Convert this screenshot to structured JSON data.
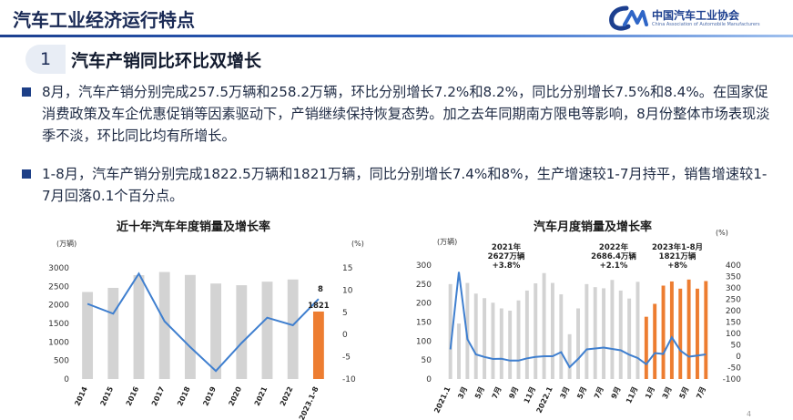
{
  "header": {
    "title": "汽车工业经济运行特点"
  },
  "logo": {
    "name": "中国汽车工业协会",
    "name_en": "China Association of Automobile Manufacturers"
  },
  "section": {
    "number": "1",
    "title": "汽车产销同比环比双增长"
  },
  "paragraphs": [
    "8月，汽车产销分别完成257.5万辆和258.2万辆，环比分别增长7.2%和8.2%，同比分别增长7.5%和8.4%。在国家促消费政策及车企优惠促销等因素驱动下，产销继续保持恢复态势。加之去年同期南方限电等影响，8月份整体市场表现淡季不淡，环比同比均有所增长。",
    "1-8月，汽车产销分别完成1822.5万辆和1821万辆，同比分别增长7.4%和8%，生产增速较1-7月持平，销售增速较1-7月回落0.1个百分点。"
  ],
  "colors": {
    "accent": "#1c3f8f",
    "bar_gray": "#d3d3d3",
    "bar_orange": "#ed7d31",
    "line_blue": "#3f7fcf"
  },
  "chart_data": [
    {
      "type": "bar",
      "title": "近十年汽车年度销量及增长率",
      "ylabel": "(万辆)",
      "y2label": "(%)",
      "categories": [
        "2014",
        "2015",
        "2016",
        "2017",
        "2018",
        "2019",
        "2020",
        "2021",
        "2022",
        "2023.1-8"
      ],
      "ylim": [
        0,
        3000
      ],
      "y2lim": [
        -10,
        15
      ],
      "yticks": [
        "0",
        "500",
        "1000",
        "1500",
        "2000",
        "2500",
        "3000"
      ],
      "y2ticks": [
        "-10",
        "-5",
        "0",
        "5",
        "10",
        "15"
      ],
      "series": [
        {
          "values": [
            2349,
            2460,
            2803,
            2888,
            2808,
            2577,
            2531,
            2627,
            2686,
            1821
          ]
        },
        {
          "values": [
            6.9,
            4.7,
            13.7,
            3.0,
            -2.8,
            -8.2,
            -1.9,
            3.8,
            2.1,
            8.0
          ]
        }
      ],
      "annotations": {
        "last_value": "1821",
        "last_rate": "8"
      }
    },
    {
      "type": "bar",
      "title": "汽车月度销量及增长率",
      "ylabel": "(万辆)",
      "y2label": "(%)",
      "ylim": [
        0,
        300
      ],
      "y2lim": [
        -100,
        400
      ],
      "yticks": [
        "0",
        "50",
        "100",
        "150",
        "200",
        "250",
        "300"
      ],
      "y2ticks": [
        "-100",
        "-50",
        "0",
        "50",
        "100",
        "150",
        "200",
        "250",
        "300",
        "350",
        "400"
      ],
      "xticks": [
        "2021.1",
        "3月",
        "5月",
        "7月",
        "9月",
        "11月",
        "2022.1",
        "3月",
        "5月",
        "7月",
        "9月",
        "11月",
        "1月",
        "3月",
        "5月",
        "7月"
      ],
      "series": [
        {
          "values": [
            250,
            146,
            253,
            225,
            213,
            201,
            186,
            180,
            207,
            233,
            252,
            279,
            253,
            223,
            118,
            186,
            250,
            242,
            239,
            261,
            233,
            212,
            256,
            164,
            198,
            246,
            257,
            238,
            262,
            238,
            258
          ]
        },
        {
          "values": [
            30,
            370,
            75,
            8,
            -3,
            -12,
            -11,
            -19,
            -19,
            -9,
            -3,
            0,
            0,
            18,
            -48,
            -12,
            30,
            34,
            38,
            32,
            26,
            7,
            -8,
            -35,
            14,
            10,
            83,
            25,
            -2,
            3,
            8
          ]
        }
      ],
      "bar_colors_index_from": 23,
      "annotations": [
        {
          "lines": [
            "2021年",
            "2627万辆",
            "+3.8%"
          ]
        },
        {
          "lines": [
            "2022年",
            "2686.4万辆",
            "+2.1%"
          ]
        },
        {
          "lines": [
            "2023年1-8月",
            "1821万辆",
            "+8%"
          ]
        }
      ]
    }
  ]
}
